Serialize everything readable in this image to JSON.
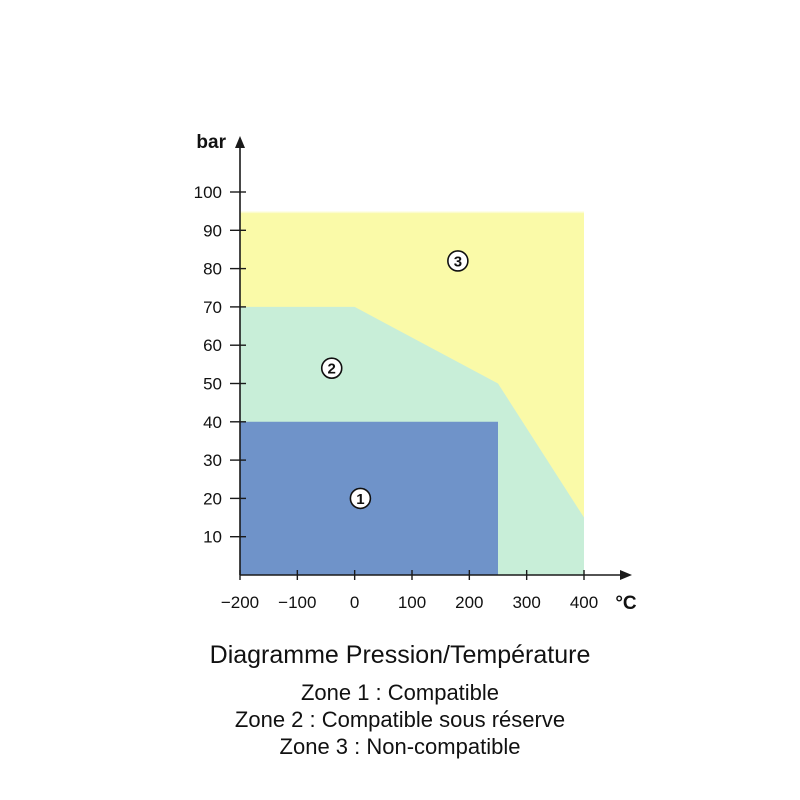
{
  "chart_data": {
    "type": "area",
    "title": "Diagramme Pression/Température",
    "xlabel": "°C",
    "ylabel": "bar",
    "xlim": [
      -200,
      450
    ],
    "ylim": [
      0,
      110
    ],
    "x_ticks": [
      -200,
      -100,
      0,
      100,
      200,
      300,
      400
    ],
    "x_tick_labels": [
      "−200",
      "−100",
      "0",
      "100",
      "200",
      "300",
      "400"
    ],
    "y_ticks": [
      10,
      20,
      30,
      40,
      50,
      60,
      70,
      80,
      90,
      100
    ],
    "y_tick_labels": [
      "10",
      "20",
      "30",
      "40",
      "50",
      "60",
      "70",
      "80",
      "90",
      "100"
    ],
    "zones": [
      {
        "name": "Zone 1 : Compatible",
        "marker": "1",
        "color": "#6f93c9",
        "polygon": [
          [
            -200,
            0
          ],
          [
            -200,
            40
          ],
          [
            250,
            40
          ],
          [
            250,
            0
          ]
        ],
        "marker_at": [
          10,
          20
        ]
      },
      {
        "name": "Zone 2 : Compatible sous réserve",
        "marker": "2",
        "color": "#c8eed8",
        "polygon": [
          [
            -200,
            0
          ],
          [
            -200,
            70
          ],
          [
            0,
            70
          ],
          [
            250,
            50
          ],
          [
            400,
            15
          ],
          [
            400,
            0
          ]
        ],
        "marker_at": [
          -40,
          54
        ]
      },
      {
        "name": "Zone 3 : Non-compatible",
        "marker": "3",
        "color": "#fafaa8",
        "polygon": [
          [
            -200,
            0
          ],
          [
            -200,
            95
          ],
          [
            400,
            95
          ],
          [
            400,
            0
          ]
        ],
        "marker_at": [
          180,
          82
        ]
      }
    ]
  },
  "caption": {
    "title": "Diagramme Pression/Température",
    "legend": [
      "Zone 1 : Compatible",
      "Zone 2 : Compatible sous réserve",
      "Zone 3 : Non-compatible"
    ]
  },
  "colors": {
    "axis": "#1a1a1a",
    "zone1": "#6f93c9",
    "zone2": "#c8eed8",
    "zone3": "#fafaa8"
  }
}
